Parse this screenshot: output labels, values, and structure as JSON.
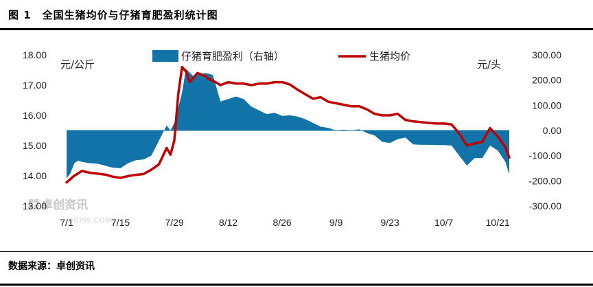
{
  "figure": {
    "title": "图 1　全国生猪均价与仔猪育肥盈利统计图",
    "source": "数据来源：卓创资讯",
    "watermark": "卓创资讯",
    "watermark_sub": "SCI99.COM"
  },
  "chart_data": {
    "type": "line+area",
    "x_tick_labels": [
      "7/1",
      "7/15",
      "7/29",
      "8/12",
      "8/26",
      "9/9",
      "9/23",
      "10/7",
      "10/21"
    ],
    "x_tick_days": [
      0,
      14,
      28,
      42,
      56,
      70,
      84,
      98,
      112
    ],
    "y_left": {
      "unit": "元/公斤",
      "min": 13,
      "max": 18,
      "ticks": [
        "13.00",
        "14.00",
        "15.00",
        "16.00",
        "17.00",
        "18.00"
      ]
    },
    "y_right": {
      "unit": "元/头",
      "min": -300,
      "max": 300,
      "ticks": [
        "-300.00",
        "-200.00",
        "-100.00",
        "0.00",
        "100.00",
        "200.00",
        "300.00"
      ]
    },
    "legend": {
      "position": "top-center"
    },
    "series": [
      {
        "name": "仔猪育肥盈利（右轴）",
        "axis": "right",
        "style": "area",
        "color": "#1273a8",
        "x": [
          0,
          1,
          2,
          3,
          4,
          6,
          8,
          10,
          12,
          14,
          16,
          18,
          20,
          22,
          24,
          26,
          27,
          28,
          30,
          31,
          32,
          33,
          34,
          36,
          37,
          38,
          40,
          42,
          44,
          46,
          48,
          50,
          52,
          54,
          56,
          58,
          60,
          62,
          64,
          66,
          68,
          70,
          72,
          74,
          76,
          78,
          80,
          82,
          84,
          86,
          88,
          90,
          92,
          94,
          96,
          98,
          100,
          102,
          104,
          106,
          108,
          110,
          112,
          114,
          115
        ],
        "y": [
          -190,
          -170,
          -130,
          -120,
          -125,
          -130,
          -132,
          -140,
          -148,
          -150,
          -130,
          -118,
          -115,
          -100,
          -40,
          20,
          0,
          30,
          150,
          245,
          230,
          215,
          222,
          228,
          225,
          220,
          115,
          125,
          135,
          125,
          95,
          80,
          65,
          70,
          58,
          60,
          55,
          45,
          30,
          15,
          10,
          0,
          -3,
          0,
          5,
          -10,
          -20,
          -45,
          -50,
          -35,
          -28,
          -55,
          -57,
          -57,
          -58,
          -58,
          -60,
          -100,
          -140,
          -110,
          -110,
          -60,
          -80,
          -125,
          -175
        ]
      },
      {
        "name": "生猪均价",
        "axis": "left",
        "style": "line",
        "color": "#c00000",
        "x": [
          0,
          2,
          4,
          6,
          8,
          10,
          12,
          14,
          16,
          18,
          20,
          22,
          24,
          26,
          27,
          28,
          29,
          30,
          31,
          32,
          33,
          34,
          35,
          36,
          37,
          38,
          40,
          42,
          44,
          46,
          48,
          50,
          52,
          54,
          56,
          58,
          60,
          62,
          64,
          66,
          68,
          70,
          72,
          74,
          76,
          78,
          80,
          82,
          84,
          86,
          88,
          90,
          92,
          94,
          96,
          98,
          100,
          102,
          104,
          106,
          108,
          110,
          112,
          114,
          115
        ],
        "y": [
          13.78,
          14.0,
          14.16,
          14.1,
          14.07,
          14.04,
          13.97,
          13.93,
          13.99,
          14.03,
          14.06,
          14.2,
          14.38,
          14.92,
          14.7,
          15.17,
          16.7,
          17.6,
          17.45,
          17.1,
          17.25,
          17.4,
          17.35,
          17.3,
          17.2,
          17.15,
          17.0,
          17.1,
          17.05,
          17.05,
          17.0,
          17.05,
          17.05,
          17.1,
          17.1,
          17.02,
          16.85,
          16.7,
          16.55,
          16.6,
          16.45,
          16.4,
          16.35,
          16.3,
          16.3,
          16.2,
          16.05,
          16.0,
          16.0,
          16.05,
          15.85,
          15.8,
          15.78,
          15.75,
          15.73,
          15.73,
          15.7,
          15.4,
          15.0,
          15.07,
          15.12,
          15.58,
          15.3,
          14.95,
          14.6
        ]
      }
    ]
  }
}
